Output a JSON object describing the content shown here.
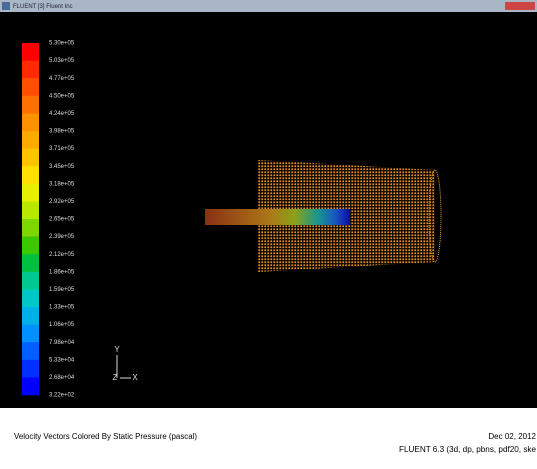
{
  "window": {
    "title": "FLUENT [3] Fluent Inc"
  },
  "legend": {
    "labels": [
      "5.30e+05",
      "5.03e+05",
      "4.77e+05",
      "4.50e+05",
      "4.24e+05",
      "3.98e+05",
      "3.71e+05",
      "3.45e+05",
      "3.18e+05",
      "2.92e+05",
      "2.65e+05",
      "2.39e+05",
      "2.12e+05",
      "1.86e+05",
      "1.59e+05",
      "1.33e+05",
      "1.06e+05",
      "7.98e+04",
      "5.33e+04",
      "2.68e+04",
      "3.22e+02"
    ],
    "colors": [
      "#ff0000",
      "#ff2a00",
      "#ff5000",
      "#ff7000",
      "#ff9000",
      "#ffaa00",
      "#ffc400",
      "#ffe000",
      "#e8ee00",
      "#b8e800",
      "#7ed800",
      "#3cc800",
      "#00c040",
      "#00c890",
      "#00c8c8",
      "#00b0e8",
      "#0090ff",
      "#0060ff",
      "#0030ff",
      "#0000ff"
    ]
  },
  "axes": {
    "y": "Y",
    "z": "Z",
    "x": "X"
  },
  "caption": {
    "left": "Velocity Vectors Colored By Static Pressure (pascal)",
    "date": "Dec 02, 2012",
    "version": "FLUENT 6.3 (3d, dp, pbns, pdf20, ske"
  }
}
